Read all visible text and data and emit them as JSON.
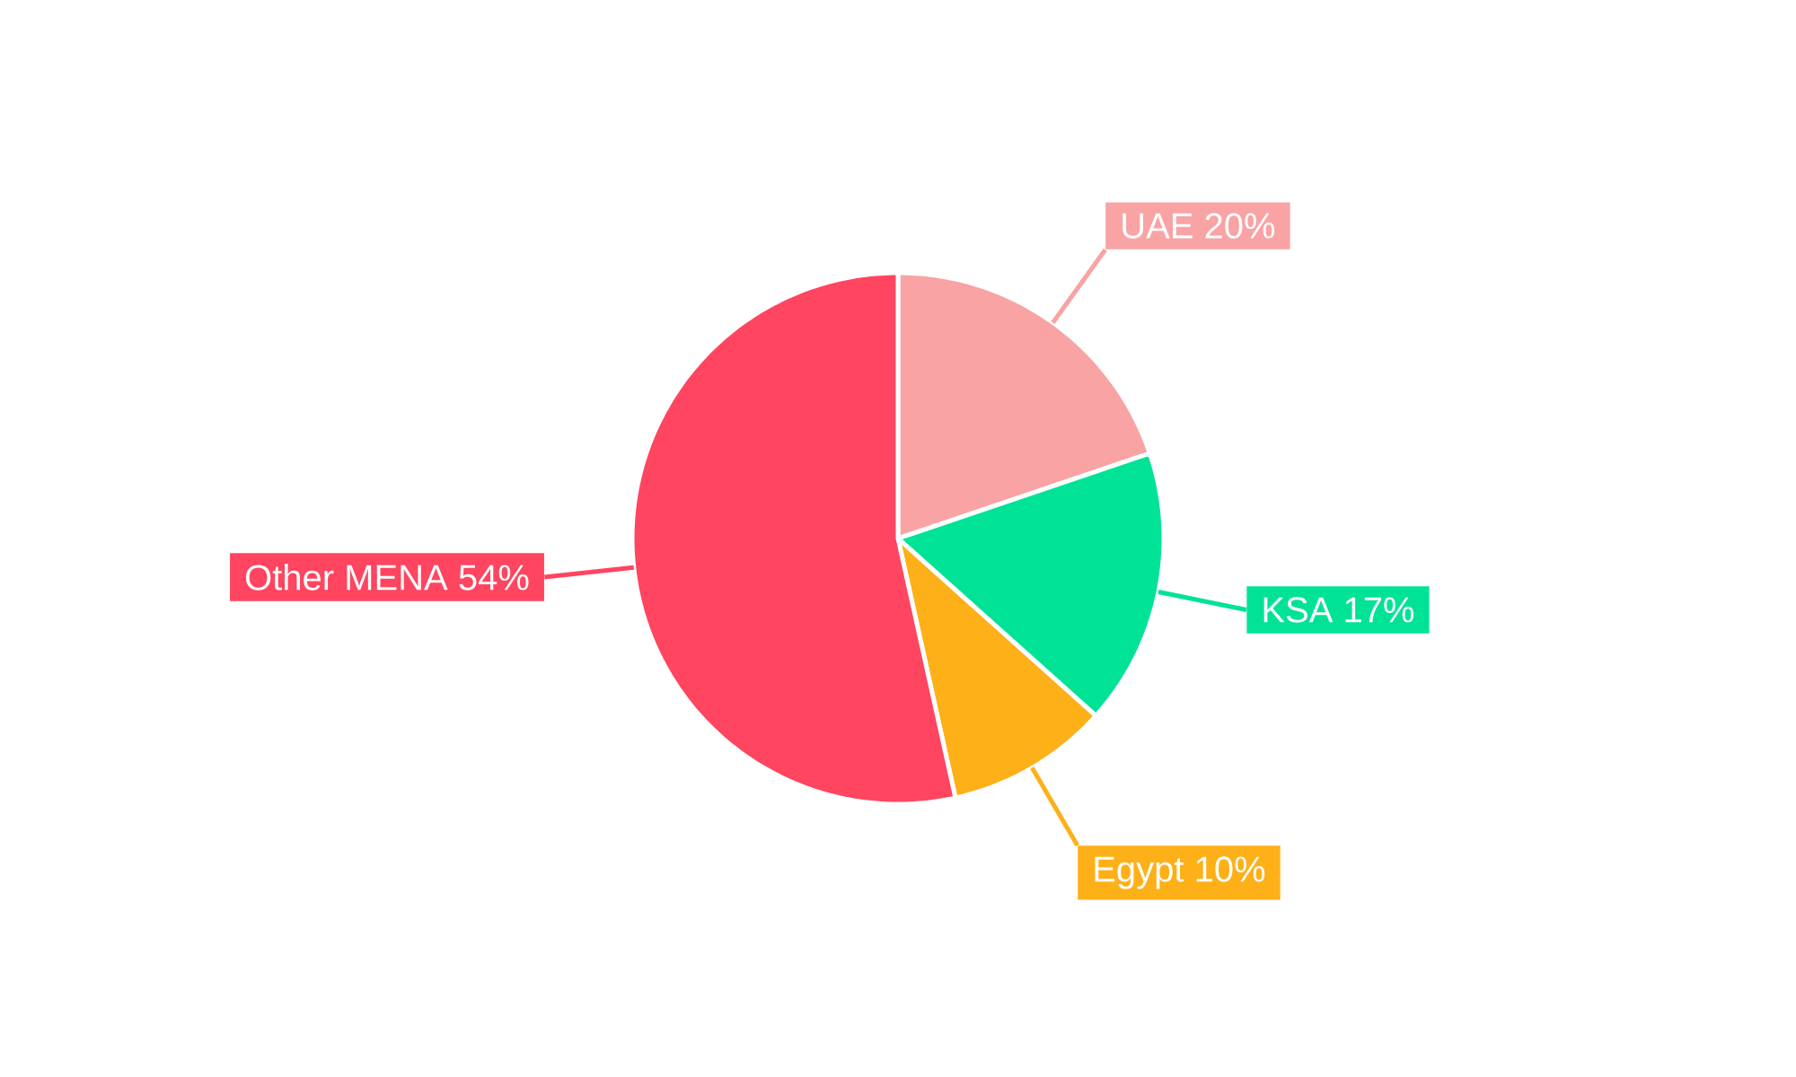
{
  "chart_data": {
    "type": "pie",
    "categories": [
      "UAE",
      "KSA",
      "Egypt",
      "Other MENA"
    ],
    "values": [
      20,
      17,
      10,
      54
    ],
    "colors": [
      "#f9a3a4",
      "#00e396",
      "#feb019",
      "#ff4560"
    ],
    "value_labels": [
      "20%",
      "17%",
      "10%",
      "54%"
    ]
  }
}
